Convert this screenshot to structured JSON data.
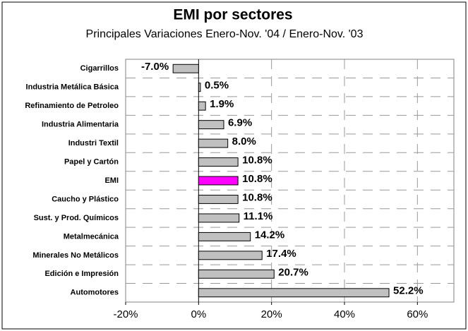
{
  "chart_data": {
    "type": "hbar",
    "title": "EMI por sectores",
    "subtitle": "Principales Variaciones Enero-Nov. '04 / Enero-Nov. '03",
    "categories": [
      "Cigarrillos",
      "Industria Metálica Básica",
      "Refinamiento de Petroleo",
      "Industria Alimentaria",
      "Industri Textil",
      "Papel y Cartón",
      "EMI",
      "Caucho y Plástico",
      "Sust. y Prod. Químicos",
      "Metalmecánica",
      "Minerales No Metálicos",
      "Edición e Impresión",
      "Automotores"
    ],
    "values": [
      -7.0,
      0.5,
      1.9,
      6.9,
      8.0,
      10.8,
      10.8,
      10.8,
      11.1,
      14.2,
      17.4,
      20.7,
      52.2
    ],
    "value_labels": [
      "-7.0%",
      "0.5%",
      "1.9%",
      "6.9%",
      "8.0%",
      "10.8%",
      "10.8%",
      "10.8%",
      "11.1%",
      "14.2%",
      "17.4%",
      "20.7%",
      "52.2%"
    ],
    "colors": [
      "#c0c0c0",
      "#c0c0c0",
      "#c0c0c0",
      "#c0c0c0",
      "#c0c0c0",
      "#c0c0c0",
      "#ff00ff",
      "#c0c0c0",
      "#c0c0c0",
      "#c0c0c0",
      "#c0c0c0",
      "#c0c0c0",
      "#c0c0c0"
    ],
    "xlim": [
      -20,
      70
    ],
    "xticks": [
      {
        "value": -20,
        "label": "-20%"
      },
      {
        "value": 0,
        "label": "0%"
      },
      {
        "value": 20,
        "label": "20%"
      },
      {
        "value": 40,
        "label": "40%"
      },
      {
        "value": 60,
        "label": "60%"
      }
    ],
    "grid": true
  }
}
